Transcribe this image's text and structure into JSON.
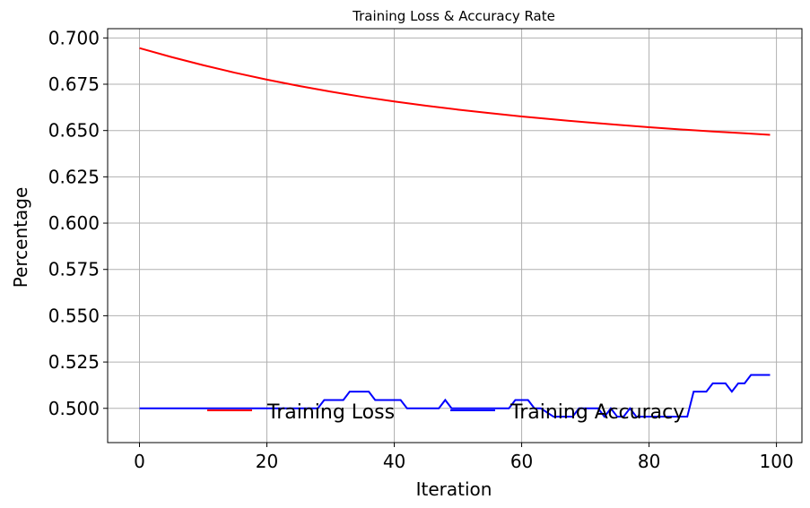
{
  "chart_data": {
    "type": "line",
    "title": "Training Loss & Accuracy Rate",
    "xlabel": "Iteration",
    "ylabel": "Percentage",
    "xlim": [
      -5,
      104
    ],
    "ylim": [
      0.4815,
      0.705
    ],
    "xticks": [
      0,
      20,
      40,
      60,
      80,
      100
    ],
    "yticks": [
      0.5,
      0.525,
      0.55,
      0.575,
      0.6,
      0.625,
      0.65,
      0.675,
      0.7
    ],
    "xtick_labels": [
      "0",
      "20",
      "40",
      "60",
      "80",
      "100"
    ],
    "ytick_labels": [
      "0.500",
      "0.525",
      "0.550",
      "0.575",
      "0.600",
      "0.625",
      "0.650",
      "0.675",
      "0.700"
    ],
    "grid": true,
    "legend_position": "lower-center",
    "series": [
      {
        "name": "Training Loss",
        "color": "#ff0000",
        "x": [
          0,
          5,
          10,
          15,
          20,
          25,
          30,
          35,
          40,
          45,
          50,
          55,
          60,
          65,
          70,
          75,
          80,
          85,
          90,
          95,
          99
        ],
        "y": [
          0.6945,
          0.6897,
          0.6853,
          0.6812,
          0.6775,
          0.6741,
          0.671,
          0.6682,
          0.6657,
          0.6634,
          0.6613,
          0.6594,
          0.6576,
          0.656,
          0.6545,
          0.6531,
          0.6518,
          0.6506,
          0.6495,
          0.6485,
          0.6477
        ]
      },
      {
        "name": "Training Accuracy",
        "color": "#0000ff",
        "x": [
          0,
          28,
          29,
          32,
          33,
          36,
          37,
          41,
          42,
          47,
          48,
          49,
          55,
          58,
          59,
          61,
          62,
          63,
          65,
          68,
          69,
          71,
          72,
          73,
          74,
          75,
          76,
          77,
          78,
          86,
          87,
          89,
          90,
          92,
          93,
          94,
          95,
          96,
          99
        ],
        "y": [
          0.5,
          0.5,
          0.5045,
          0.5045,
          0.509,
          0.509,
          0.5045,
          0.5045,
          0.5,
          0.5,
          0.5045,
          0.5,
          0.5,
          0.5,
          0.5045,
          0.5045,
          0.5,
          0.5,
          0.4955,
          0.4955,
          0.5,
          0.5,
          0.5,
          0.4955,
          0.5,
          0.4955,
          0.4955,
          0.5,
          0.4955,
          0.4955,
          0.509,
          0.509,
          0.5135,
          0.5135,
          0.509,
          0.5135,
          0.5135,
          0.518,
          0.518
        ]
      }
    ]
  }
}
